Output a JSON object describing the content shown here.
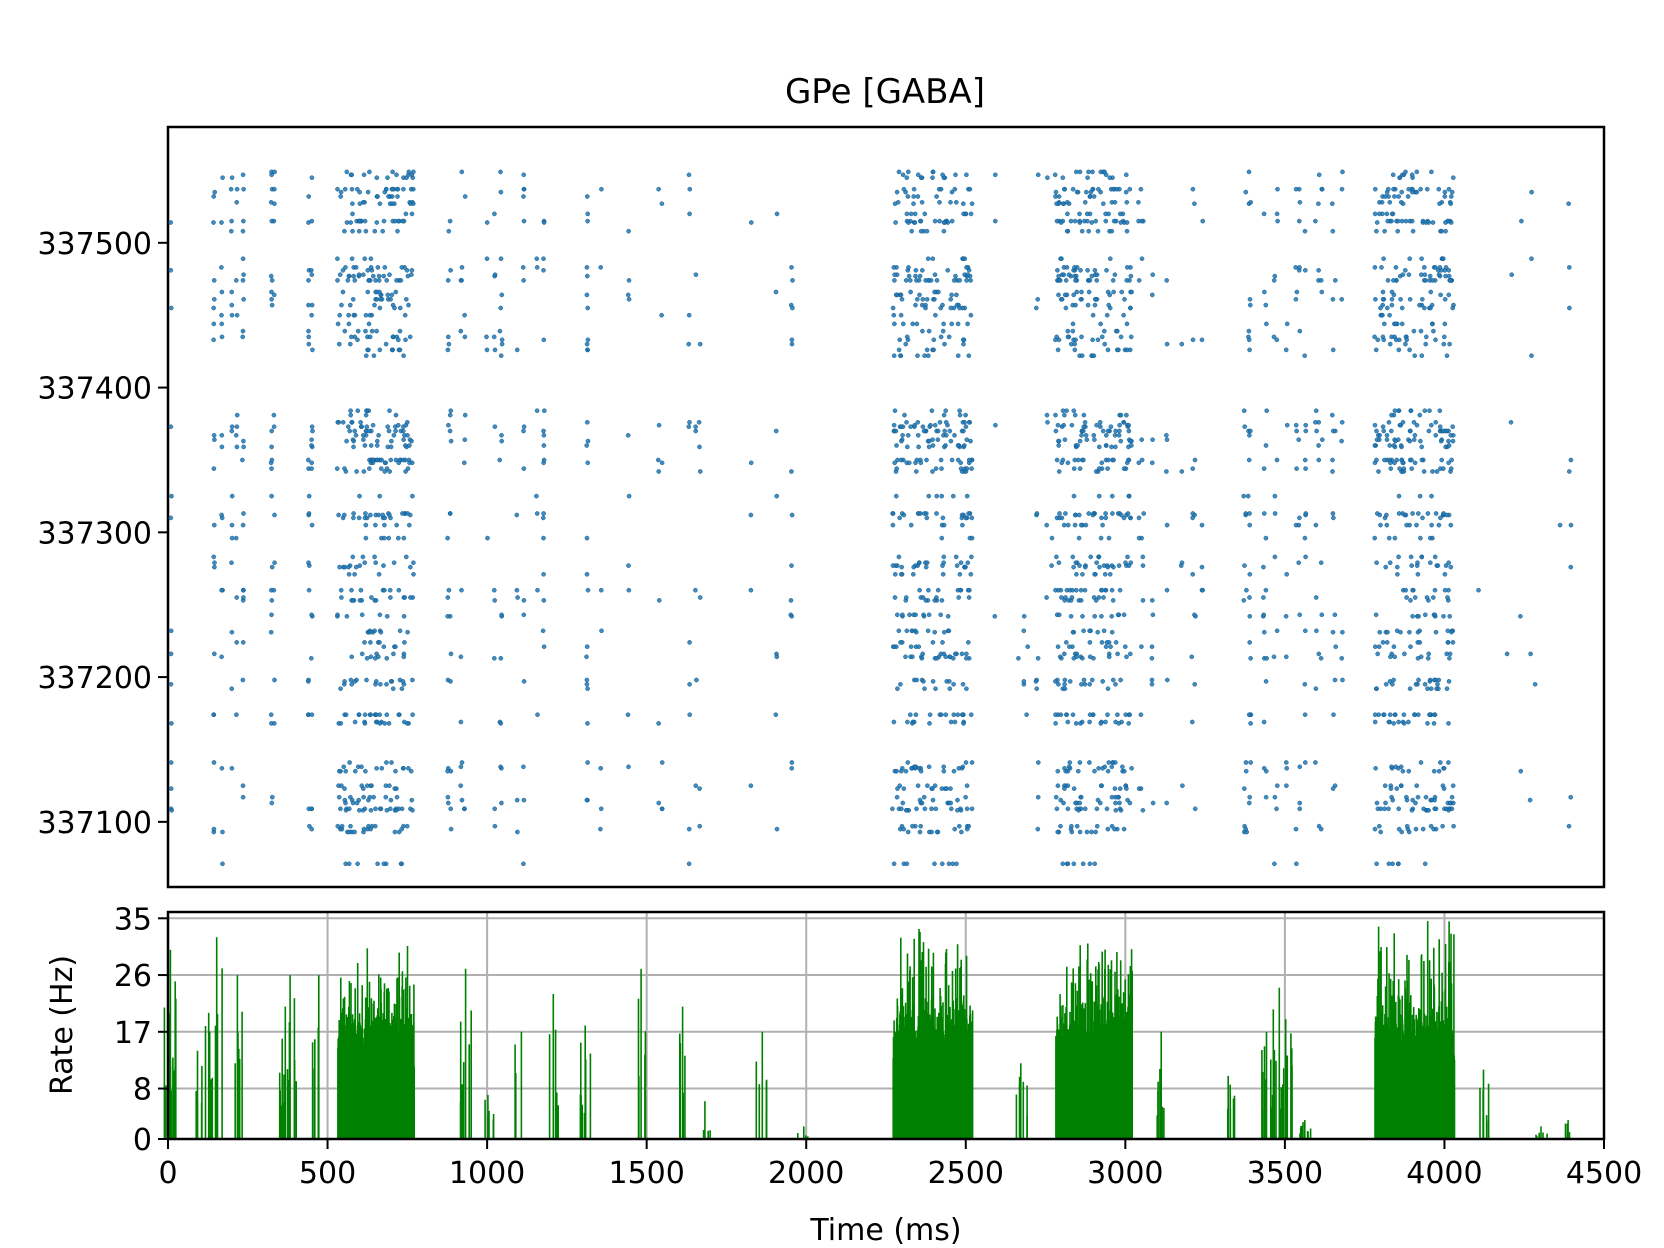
{
  "chart_data": [
    {
      "type": "scatter",
      "title": "GPe [GABA]",
      "xlim": [
        0,
        4500
      ],
      "ylim": [
        337055,
        337580
      ],
      "yticks": [
        337100,
        337200,
        337300,
        337400,
        337500
      ],
      "ytick_labels": [
        "337100",
        "337200",
        "337300",
        "337400",
        "337500"
      ],
      "xticks_visible": false,
      "grid": false,
      "marker_color": "#1f77b4",
      "bursts": [
        {
          "start": 530,
          "end": 770
        },
        {
          "start": 2270,
          "end": 2520
        },
        {
          "start": 2780,
          "end": 3020
        },
        {
          "start": 3780,
          "end": 4030
        }
      ],
      "sparse_activity": [
        [
          0,
          480,
          0.18
        ],
        [
          780,
          1700,
          0.09
        ],
        [
          1820,
          2000,
          0.05
        ],
        [
          2520,
          2780,
          0.03
        ],
        [
          3020,
          3780,
          0.08
        ],
        [
          4030,
          4400,
          0.02
        ]
      ]
    },
    {
      "type": "bar",
      "xlabel": "Time (ms)",
      "ylabel": "Rate (Hz)",
      "xlim": [
        0,
        4500
      ],
      "ylim": [
        0,
        36
      ],
      "xticks": [
        0,
        500,
        1000,
        1500,
        2000,
        2500,
        3000,
        3500,
        4000,
        4500
      ],
      "xtick_labels": [
        "0",
        "500",
        "1000",
        "1500",
        "2000",
        "2500",
        "3000",
        "3500",
        "4000",
        "4500"
      ],
      "yticks": [
        0,
        8,
        17,
        26,
        35
      ],
      "ytick_labels": [
        "0",
        "8",
        "17",
        "26",
        "35"
      ],
      "grid": true,
      "bar_color": "#008000",
      "bursts": [
        {
          "start": 530,
          "end": 770,
          "base": 17,
          "peak": 31
        },
        {
          "start": 2270,
          "end": 2520,
          "base": 17,
          "peak": 35
        },
        {
          "start": 2780,
          "end": 3020,
          "base": 17,
          "peak": 33
        },
        {
          "start": 3780,
          "end": 4030,
          "base": 17,
          "peak": 35
        }
      ],
      "sparse_peaks": [
        [
          5,
          30
        ],
        [
          20,
          25
        ],
        [
          90,
          14
        ],
        [
          125,
          20
        ],
        [
          150,
          32
        ],
        [
          215,
          26
        ],
        [
          365,
          21
        ],
        [
          380,
          26
        ],
        [
          470,
          26
        ],
        [
          930,
          27
        ],
        [
          1000,
          7
        ],
        [
          1105,
          17
        ],
        [
          1205,
          23
        ],
        [
          1305,
          18
        ],
        [
          1480,
          27
        ],
        [
          1610,
          21
        ],
        [
          1680,
          6
        ],
        [
          1860,
          17
        ],
        [
          1990,
          2
        ],
        [
          2670,
          12
        ],
        [
          2880,
          31
        ],
        [
          3110,
          17
        ],
        [
          3320,
          10
        ],
        [
          3440,
          17
        ],
        [
          3480,
          24
        ],
        [
          3500,
          19
        ],
        [
          3560,
          3
        ],
        [
          4120,
          11
        ],
        [
          4300,
          2
        ],
        [
          4385,
          3
        ]
      ]
    }
  ]
}
